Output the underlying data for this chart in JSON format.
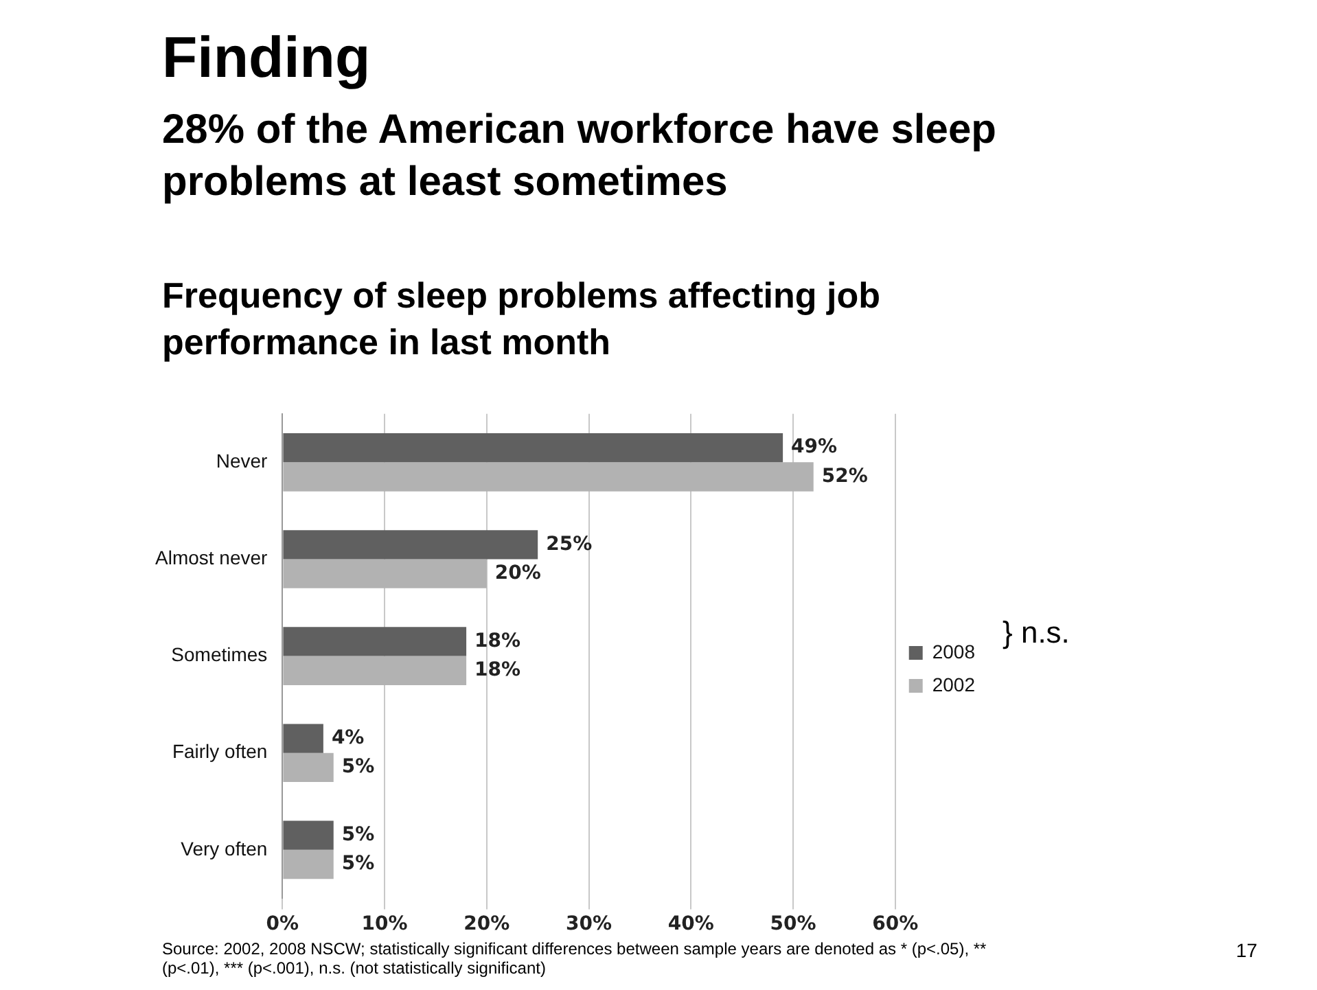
{
  "chart_data": {
    "type": "bar",
    "orientation": "horizontal",
    "title": "Finding",
    "subtitle": "28% of the American workforce have sleep problems at least sometimes",
    "ylabel": "Frequency of sleep problems affecting job performance in last month",
    "categories": [
      "Never",
      "Almost never",
      "Sometimes",
      "Fairly often",
      "Very often"
    ],
    "series": [
      {
        "name": "2008",
        "color": "#606060",
        "values": [
          49,
          25,
          18,
          4,
          5
        ],
        "value_labels": [
          "49%",
          "25%",
          "18%",
          "4%",
          "5%"
        ]
      },
      {
        "name": "2002",
        "color": "#b2b2b2",
        "values": [
          52,
          20,
          18,
          5,
          5
        ],
        "value_labels": [
          "52%",
          "20%",
          "18%",
          "5%",
          "5%"
        ]
      }
    ],
    "xlim": [
      0,
      60
    ],
    "xticks": [
      {
        "value": 0,
        "label": "0%"
      },
      {
        "value": 10,
        "label": "10%"
      },
      {
        "value": 20,
        "label": "20%"
      },
      {
        "value": 30,
        "label": "30%"
      },
      {
        "value": 40,
        "label": "40%"
      },
      {
        "value": 50,
        "label": "50%"
      },
      {
        "value": 60,
        "label": "60%"
      }
    ],
    "grid": "x",
    "legend": "right",
    "annotations": [
      "} n.s.",
      "Source: 2002, 2008 NSCW; statistically significant differences between sample years are denoted as * (p<.05), ** (p<.01), *** (p<.001), n.s. (not statistically significant)",
      "17"
    ]
  }
}
